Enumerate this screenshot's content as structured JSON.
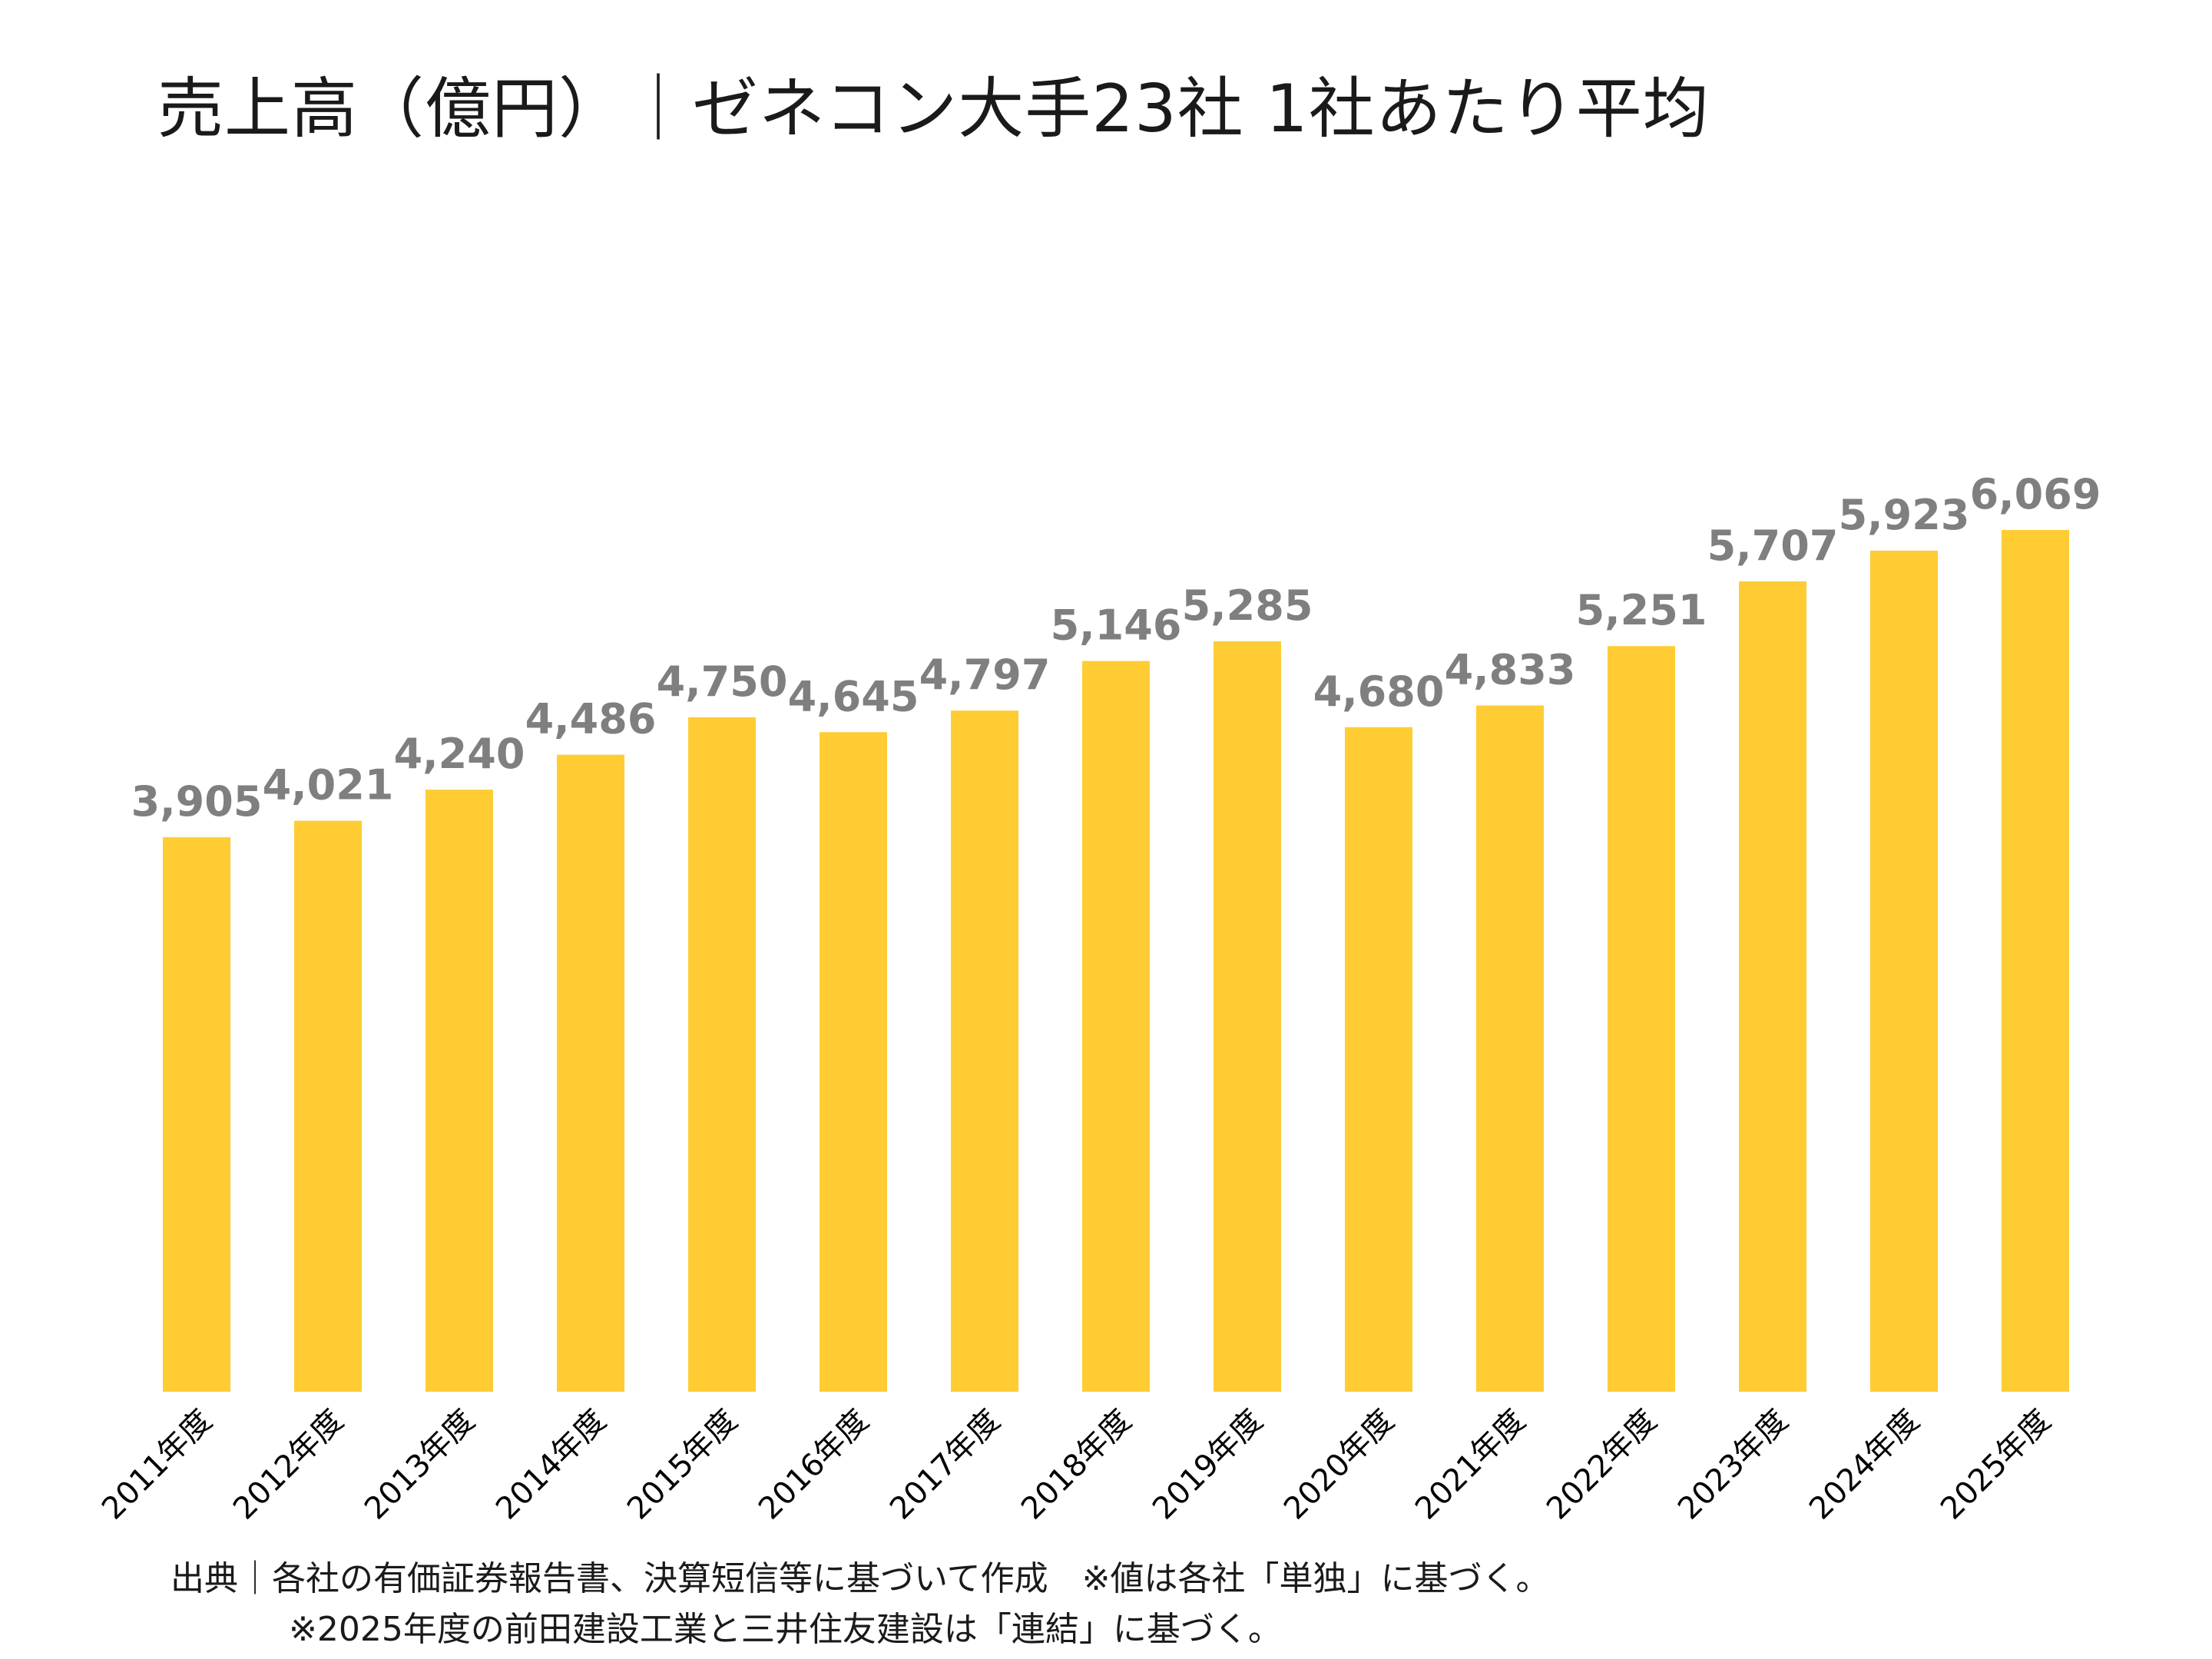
{
  "title": "売上高（億円）｜ゼネコン大手23社 1社あたり平均",
  "colors": {
    "bar": "#FFCC33",
    "data_label": "#7F7F7F",
    "tick_label": "#000000",
    "text": "#1A1A1A"
  },
  "footnotes": [
    "出典｜各社の有価証券報告書、決算短信等に基づいて作成　※値は各社「単独」に基づく。",
    "※2025年度の前田建設工業と三井住友建設は「連結」に基づく。"
  ],
  "chart_data": {
    "type": "bar",
    "title": "売上高（億円）｜ゼネコン大手23社 1社あたり平均",
    "xlabel": "",
    "ylabel": "",
    "categories": [
      "2011年度",
      "2012年度",
      "2013年度",
      "2014年度",
      "2015年度",
      "2016年度",
      "2017年度",
      "2018年度",
      "2019年度",
      "2020年度",
      "2021年度",
      "2022年度",
      "2023年度",
      "2024年度",
      "2025年度"
    ],
    "values": [
      3905,
      4021,
      4240,
      4486,
      4750,
      4645,
      4797,
      5146,
      5285,
      4680,
      4833,
      5251,
      5707,
      5923,
      6069
    ],
    "data_labels": [
      "3,905",
      "4,021",
      "4,240",
      "4,486",
      "4,750",
      "4,645",
      "4,797",
      "5,146",
      "5,285",
      "4,680",
      "4,833",
      "5,251",
      "5,707",
      "5,923",
      "6,069"
    ],
    "ylim": [
      0,
      8000
    ],
    "grid": false,
    "legend": "none",
    "x_tick_rotation": -45
  }
}
